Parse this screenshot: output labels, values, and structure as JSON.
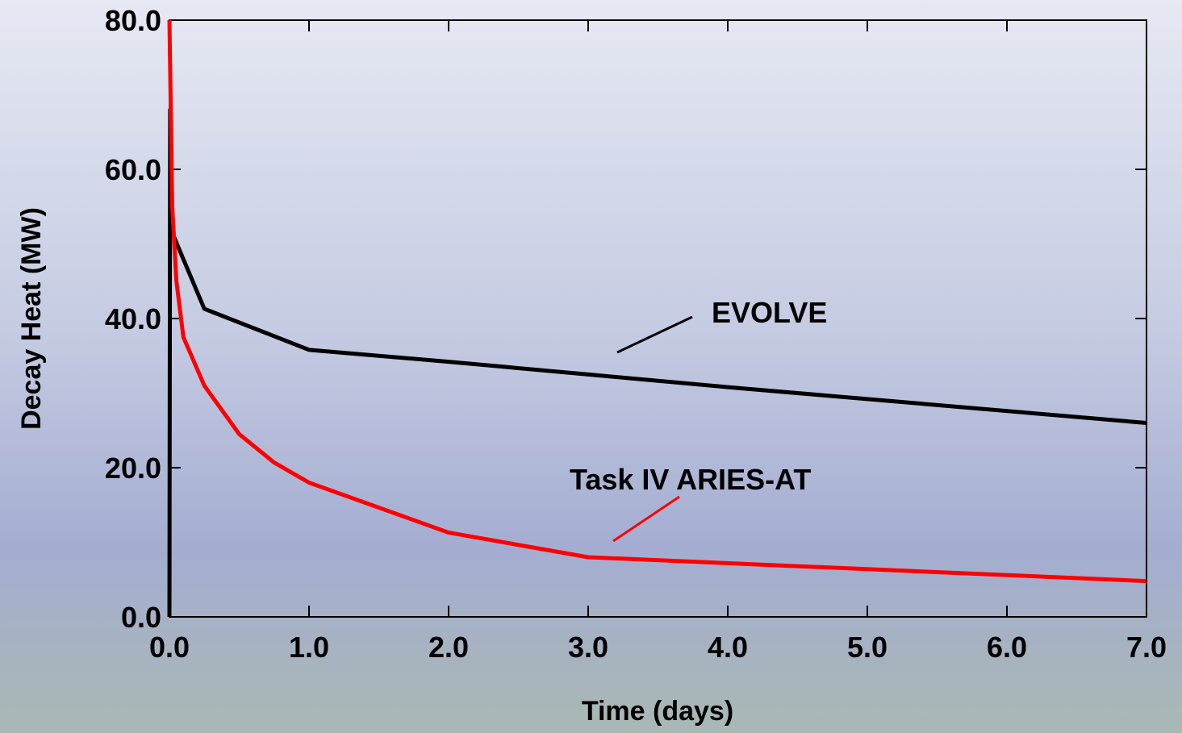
{
  "chart_data": {
    "type": "line",
    "xlabel": "Time (days)",
    "ylabel": "Decay Heat (MW)",
    "xlim": [
      0,
      7
    ],
    "ylim": [
      0,
      80
    ],
    "xticks": [
      {
        "value": 0,
        "label": "0.0"
      },
      {
        "value": 1,
        "label": "1.0"
      },
      {
        "value": 2,
        "label": "2.0"
      },
      {
        "value": 3,
        "label": "3.0"
      },
      {
        "value": 4,
        "label": "4.0"
      },
      {
        "value": 5,
        "label": "5.0"
      },
      {
        "value": 6,
        "label": "6.0"
      },
      {
        "value": 7,
        "label": "7.0"
      }
    ],
    "yticks": [
      {
        "value": 0,
        "label": "0.0"
      },
      {
        "value": 20,
        "label": "20.0"
      },
      {
        "value": 40,
        "label": "40.0"
      },
      {
        "value": 60,
        "label": "60.0"
      },
      {
        "value": 80,
        "label": "80.0"
      }
    ],
    "series": [
      {
        "name": "EVOLVE",
        "color": "#000000",
        "x": [
          0,
          0.005,
          0.02,
          0.25,
          1,
          2,
          3,
          4,
          5,
          7
        ],
        "values": [
          0,
          68,
          51.5,
          41.3,
          35.8,
          34.2,
          32.5,
          30.8,
          29.2,
          26
        ]
      },
      {
        "name": "Task IV ARIES-AT",
        "color": "#ff0000",
        "x": [
          0,
          0.02,
          0.05,
          0.1,
          0.25,
          0.5,
          0.75,
          1,
          2,
          3,
          7
        ],
        "values": [
          80,
          55,
          45,
          37.5,
          31,
          24.5,
          20.7,
          18,
          11.3,
          8,
          4.8
        ]
      }
    ]
  }
}
